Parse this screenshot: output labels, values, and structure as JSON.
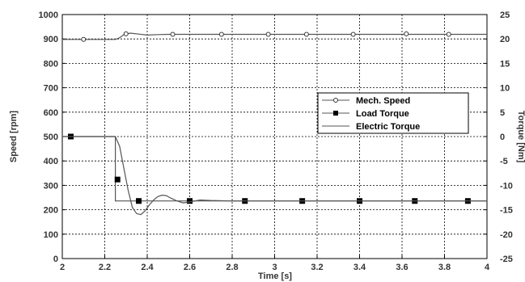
{
  "chart_data": {
    "type": "line",
    "x_axis": {
      "label": "Time [s]",
      "range": [
        2,
        4
      ],
      "ticks": [
        "2",
        "2.2",
        "2.4",
        "2.6",
        "2.8",
        "3",
        "3.2",
        "3.4",
        "3.6",
        "3.8",
        "4"
      ]
    },
    "y_left": {
      "label": "Speed [rpm]",
      "range": [
        0,
        1000
      ],
      "ticks": [
        "0",
        "100",
        "200",
        "300",
        "400",
        "500",
        "600",
        "700",
        "800",
        "900",
        "1000"
      ]
    },
    "y_right": {
      "label": "Torque [Nm]",
      "range": [
        -25,
        25
      ],
      "ticks": [
        "-25",
        "-20",
        "-15",
        "-10",
        "-5",
        "0",
        "5",
        "10",
        "15",
        "20",
        "25"
      ]
    },
    "grid": true,
    "legend_position": "right",
    "series": [
      {
        "name": "Mech. Speed",
        "axis": "left",
        "marker": "circle",
        "color": "#555555",
        "x": [
          2.0,
          2.25,
          2.27,
          2.29,
          2.32,
          2.36,
          2.4,
          2.45,
          2.5,
          2.6,
          2.8,
          3.0,
          3.2,
          3.4,
          3.6,
          3.8,
          4.0
        ],
        "y": [
          898,
          898,
          905,
          918,
          924,
          920,
          916,
          918,
          919,
          919,
          919,
          919,
          919,
          919,
          919,
          919,
          919
        ],
        "markers_x": [
          2.1,
          2.3,
          2.52,
          2.75,
          2.97,
          3.15,
          3.37,
          3.62,
          3.82
        ],
        "markers_y": [
          898,
          921,
          919,
          919,
          919,
          919,
          919,
          921,
          919
        ]
      },
      {
        "name": "Load Torque",
        "axis": "right",
        "marker": "square",
        "color": "#555555",
        "x": [
          2.0,
          2.25,
          2.25,
          4.0
        ],
        "y": [
          0,
          0,
          -13.2,
          -13.2
        ],
        "markers_x": [
          2.04,
          2.26,
          2.36,
          2.6,
          2.86,
          3.13,
          3.4,
          3.66,
          3.91
        ],
        "markers_y": [
          0,
          -8.8,
          -13.2,
          -13.2,
          -13.2,
          -13.2,
          -13.2,
          -13.2,
          -13.2
        ]
      },
      {
        "name": "Electric Torque",
        "axis": "right",
        "marker": "none",
        "color": "#555555",
        "x": [
          2.0,
          2.25,
          2.27,
          2.29,
          2.31,
          2.33,
          2.35,
          2.37,
          2.39,
          2.41,
          2.43,
          2.45,
          2.47,
          2.49,
          2.51,
          2.54,
          2.57,
          2.6,
          2.65,
          2.7,
          2.8,
          2.9,
          3.0,
          3.5,
          4.0
        ],
        "y": [
          0,
          0,
          -2,
          -6.5,
          -11,
          -14.5,
          -15.8,
          -16,
          -15.2,
          -14,
          -13,
          -12.3,
          -12,
          -12.1,
          -12.6,
          -13.2,
          -13.6,
          -13.4,
          -13,
          -13.1,
          -13.2,
          -13.2,
          -13.2,
          -13.2,
          -13.2
        ]
      }
    ]
  }
}
